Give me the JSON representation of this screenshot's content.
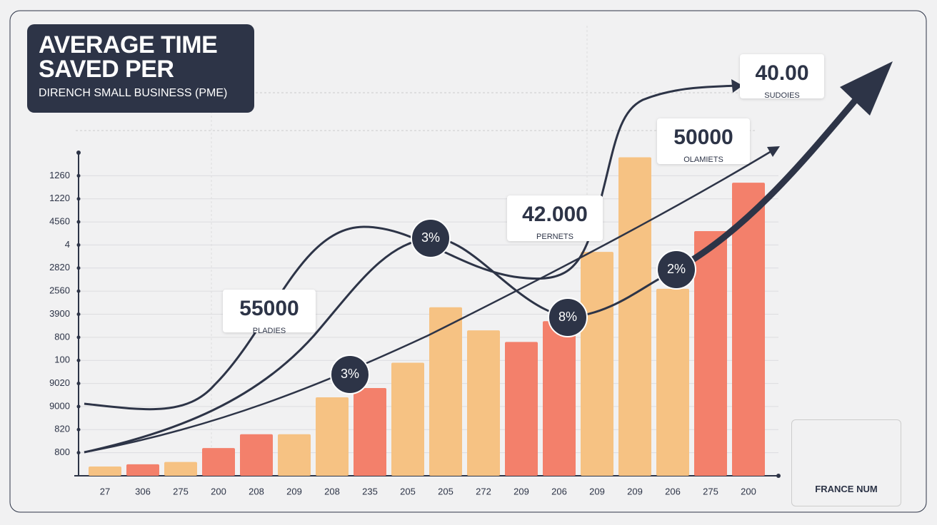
{
  "chart_data": {
    "type": "bar",
    "title": "AVERAGE TIME SAVED PER",
    "subtitle": "DIRENCH SMALL BUSINESS (PME)",
    "categories": [
      "27",
      "306",
      "275",
      "200",
      "208",
      "209",
      "208",
      "235",
      "205",
      "205",
      "272",
      "209",
      "206",
      "209",
      "209",
      "206",
      "275",
      "200"
    ],
    "values": [
      0.4,
      0.5,
      0.6,
      1.2,
      1.8,
      1.8,
      3.4,
      3.8,
      4.9,
      7.3,
      6.3,
      5.8,
      6.7,
      9.7,
      13.8,
      8.1,
      10.6,
      12.7
    ],
    "colors": [
      "#f6c283",
      "#f3806b",
      "#f6c283",
      "#f3806b",
      "#f3806b",
      "#f6c283",
      "#f6c283",
      "#f3806b",
      "#f6c283",
      "#f6c283",
      "#f6c283",
      "#f3806b",
      "#f3806b",
      "#f6c283",
      "#f6c283",
      "#f6c283",
      "#f3806b",
      "#f3806b"
    ],
    "ylim": [
      0,
      14
    ],
    "yticks": [
      {
        "value": 1,
        "label": "800"
      },
      {
        "value": 2,
        "label": "820"
      },
      {
        "value": 3,
        "label": "9000"
      },
      {
        "value": 4,
        "label": "9020"
      },
      {
        "value": 5,
        "label": "100"
      },
      {
        "value": 6,
        "label": "800"
      },
      {
        "value": 7,
        "label": "3900"
      },
      {
        "value": 8,
        "label": "2560"
      },
      {
        "value": 9,
        "label": "2820"
      },
      {
        "value": 10,
        "label": "4"
      },
      {
        "value": 11,
        "label": "4560"
      },
      {
        "value": 12,
        "label": "1220"
      },
      {
        "value": 13,
        "label": "1260"
      }
    ],
    "grid": true,
    "callouts": [
      {
        "value": "55000",
        "label": "PLADIES"
      },
      {
        "value": "42.000",
        "label": "PERNETS"
      },
      {
        "value": "50000",
        "label": "OLAMIETS"
      },
      {
        "value": "40.00",
        "label": "SUDOIES"
      }
    ],
    "badges": [
      "3%",
      "3%",
      "8%",
      "2%"
    ],
    "logo": "FRANCE NUM"
  }
}
